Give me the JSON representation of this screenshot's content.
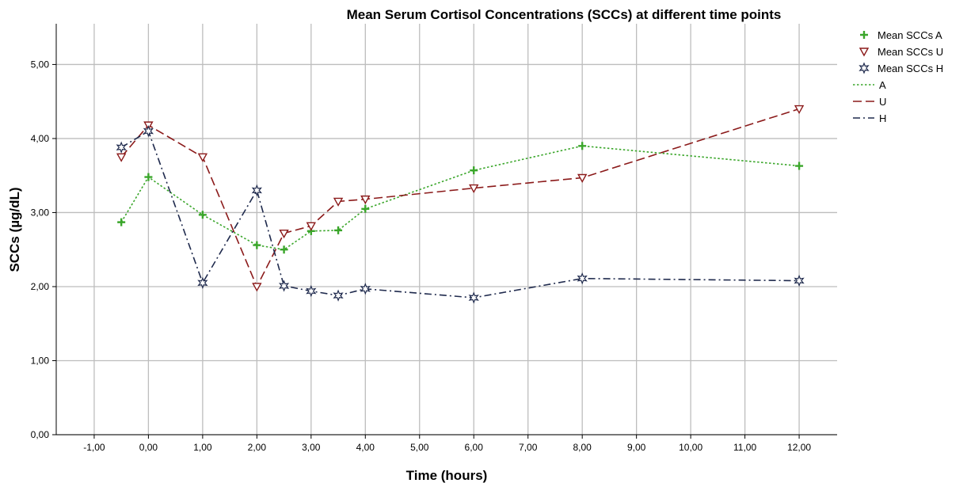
{
  "chart_data": {
    "type": "line",
    "title": "Mean Serum Cortisol Concentrations (SCCs) at different time points",
    "xlabel": "Time (hours)",
    "ylabel": "SCCs (µg/dL)",
    "xlim": [
      -1.7,
      12.7
    ],
    "ylim": [
      0,
      5.55
    ],
    "x_ticks": [
      -1,
      0,
      1,
      2,
      3,
      4,
      5,
      6,
      7,
      8,
      9,
      10,
      11,
      12
    ],
    "x_tick_labels": [
      "-1,00",
      "0,00",
      "1,00",
      "2,00",
      "3,00",
      "4,00",
      "5,00",
      "6,00",
      "7,00",
      "8,00",
      "9,00",
      "10,00",
      "11,00",
      "12,00"
    ],
    "y_ticks": [
      0,
      1,
      2,
      3,
      4,
      5
    ],
    "y_tick_labels": [
      "0,00",
      "1,00",
      "2,00",
      "3,00",
      "4,00",
      "5,00"
    ],
    "grid": true,
    "legend_position": "right",
    "series": [
      {
        "line_name": "A",
        "marker_name": "Mean SCCs A",
        "color": "#3aa62a",
        "marker": "plus",
        "dash": "dotted",
        "x": [
          -0.5,
          0,
          1,
          2,
          2.5,
          3,
          3.5,
          4,
          6,
          8,
          12
        ],
        "y": [
          2.87,
          3.48,
          2.97,
          2.56,
          2.5,
          2.75,
          2.76,
          3.05,
          3.57,
          3.9,
          3.63
        ]
      },
      {
        "line_name": "U",
        "marker_name": "Mean SCCs U",
        "color": "#8b1a1a",
        "marker": "triangle-down",
        "dash": "dashed",
        "x": [
          -0.5,
          0,
          1,
          2,
          2.5,
          3,
          3.5,
          4,
          6,
          8,
          12
        ],
        "y": [
          3.75,
          4.18,
          3.75,
          2.0,
          2.72,
          2.82,
          3.15,
          3.18,
          3.33,
          3.47,
          4.4
        ]
      },
      {
        "line_name": "H",
        "marker_name": "Mean SCCs H",
        "color": "#1f2a4d",
        "marker": "star",
        "dash": "dashdot",
        "x": [
          -0.5,
          0,
          1,
          2,
          2.5,
          3,
          3.5,
          4,
          6,
          8,
          12
        ],
        "y": [
          3.88,
          4.1,
          2.05,
          3.3,
          2.01,
          1.94,
          1.88,
          1.97,
          1.85,
          2.11,
          2.08
        ]
      }
    ]
  }
}
